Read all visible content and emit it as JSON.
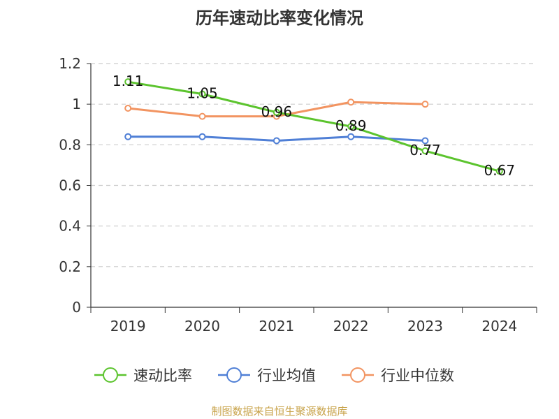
{
  "chart_data": {
    "type": "line",
    "title": "历年速动比率变化情况",
    "categories": [
      "2019",
      "2020",
      "2021",
      "2022",
      "2023",
      "2024"
    ],
    "y_ticks": [
      "0",
      "0.2",
      "0.4",
      "0.6",
      "0.8",
      "1",
      "1.2"
    ],
    "ylim": [
      0,
      1.2
    ],
    "grid": true,
    "legend_position": "bottom",
    "series": [
      {
        "name": "速动比率",
        "color": "#5cc42e",
        "values": [
          1.11,
          1.05,
          0.96,
          0.89,
          0.77,
          0.67
        ],
        "labels": [
          "1.11",
          "1.05",
          "0.96",
          "0.89",
          "0.77",
          "0.67"
        ],
        "show_labels": true
      },
      {
        "name": "行业均值",
        "color": "#4f7fd6",
        "values": [
          0.84,
          0.84,
          0.82,
          0.84,
          0.82,
          null
        ],
        "show_labels": false
      },
      {
        "name": "行业中位数",
        "color": "#f29461",
        "values": [
          0.98,
          0.94,
          0.94,
          1.01,
          1.0,
          null
        ],
        "show_labels": false
      }
    ]
  },
  "source": "制图数据来自恒生聚源数据库"
}
